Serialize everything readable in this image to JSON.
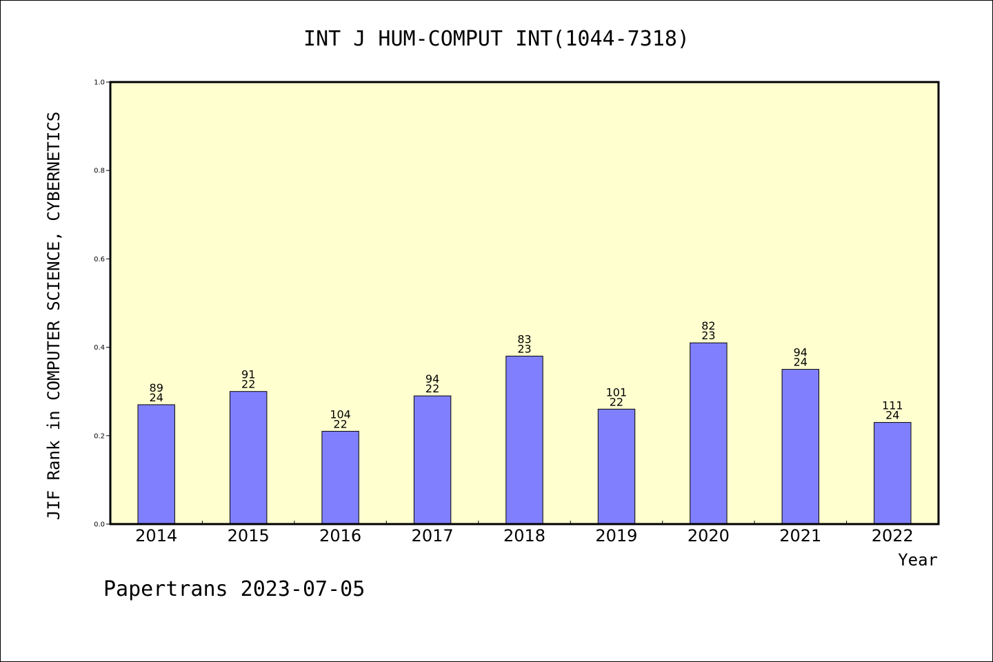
{
  "colors": {
    "plot_background": "#ffffd0",
    "bar_fill": "#8080ff",
    "bar_stroke": "#000000",
    "axis": "#000000"
  },
  "footer_text": "Papertrans 2023-07-05",
  "chart_data": {
    "type": "bar",
    "title": "INT J HUM-COMPUT INT(1044-7318)",
    "xlabel": "Year",
    "ylabel": "JIF Rank in COMPUTER SCIENCE, CYBERNETICS",
    "ylim": [
      0,
      1.0
    ],
    "yticks": [
      "0.0",
      "0.2",
      "0.4",
      "0.6",
      "0.8",
      "1.0"
    ],
    "grid": false,
    "categories": [
      "2014",
      "2015",
      "2016",
      "2017",
      "2018",
      "2019",
      "2020",
      "2021",
      "2022"
    ],
    "values": [
      0.27,
      0.3,
      0.21,
      0.29,
      0.38,
      0.26,
      0.41,
      0.35,
      0.23
    ],
    "label_top": [
      "89",
      "91",
      "104",
      "94",
      "83",
      "101",
      "82",
      "94",
      "111"
    ],
    "label_bottom": [
      "24",
      "22",
      "22",
      "22",
      "23",
      "22",
      "23",
      "24",
      "24"
    ]
  }
}
